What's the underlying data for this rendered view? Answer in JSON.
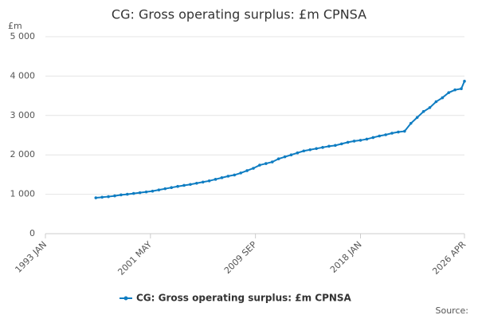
{
  "chart_data": {
    "type": "line",
    "title": "CG: Gross operating surplus: £m CPNSA",
    "y_unit": "£m",
    "source": "Source:",
    "x": [
      "1997 JAN",
      "1997 JUL",
      "1998 JAN",
      "1998 JUL",
      "1999 JAN",
      "1999 JUL",
      "2000 JAN",
      "2000 JUL",
      "2001 JAN",
      "2001 JUL",
      "2002 JAN",
      "2002 JUL",
      "2003 JAN",
      "2003 JUL",
      "2004 JAN",
      "2004 JUL",
      "2005 JAN",
      "2005 JUL",
      "2006 JAN",
      "2006 JUL",
      "2007 JAN",
      "2007 JUL",
      "2008 JAN",
      "2008 JUL",
      "2009 JAN",
      "2009 JUL",
      "2010 JAN",
      "2010 JUL",
      "2011 JAN",
      "2011 JUL",
      "2012 JAN",
      "2012 JUL",
      "2013 JAN",
      "2013 JUL",
      "2014 JAN",
      "2014 JUL",
      "2015 JAN",
      "2015 JUL",
      "2016 JAN",
      "2016 JUL",
      "2017 JAN",
      "2017 JUL",
      "2018 JAN",
      "2018 JUL",
      "2019 JAN",
      "2019 JUL",
      "2020 JAN",
      "2020 JUL",
      "2021 JAN",
      "2021 JUL",
      "2022 JAN",
      "2022 JUL",
      "2023 JAN",
      "2023 JUL",
      "2024 JAN",
      "2024 JUL",
      "2025 JAN",
      "2025 JUL",
      "2026 JAN",
      "2026 APR"
    ],
    "series": [
      {
        "name": "CG: Gross operating surplus: £m CPNSA",
        "color": "#0f7dc2",
        "values": [
          910,
          925,
          940,
          960,
          985,
          1000,
          1020,
          1040,
          1060,
          1080,
          1110,
          1140,
          1170,
          1200,
          1225,
          1250,
          1280,
          1310,
          1340,
          1380,
          1420,
          1460,
          1490,
          1540,
          1600,
          1660,
          1740,
          1780,
          1820,
          1900,
          1950,
          2000,
          2050,
          2100,
          2130,
          2160,
          2190,
          2220,
          2240,
          2280,
          2320,
          2350,
          2370,
          2400,
          2440,
          2480,
          2510,
          2550,
          2580,
          2600,
          2800,
          2950,
          3100,
          3200,
          3350,
          3450,
          3580,
          3650,
          3680,
          3870
        ]
      }
    ],
    "xlim": [
      "1993 JAN",
      "2026 APR"
    ],
    "xticks": [
      "1993 JAN",
      "2001 MAY",
      "2009 SEP",
      "2018 JAN",
      "2026 APR"
    ],
    "ylim": [
      0,
      5000
    ],
    "yticks": [
      0,
      {
        "value": 1000,
        "label": "1 000"
      },
      {
        "value": 2000,
        "label": "2 000"
      },
      {
        "value": 3000,
        "label": "3 000"
      },
      {
        "value": 4000,
        "label": "4 000"
      },
      {
        "value": 5000,
        "label": "5 000"
      }
    ],
    "grid": true
  }
}
